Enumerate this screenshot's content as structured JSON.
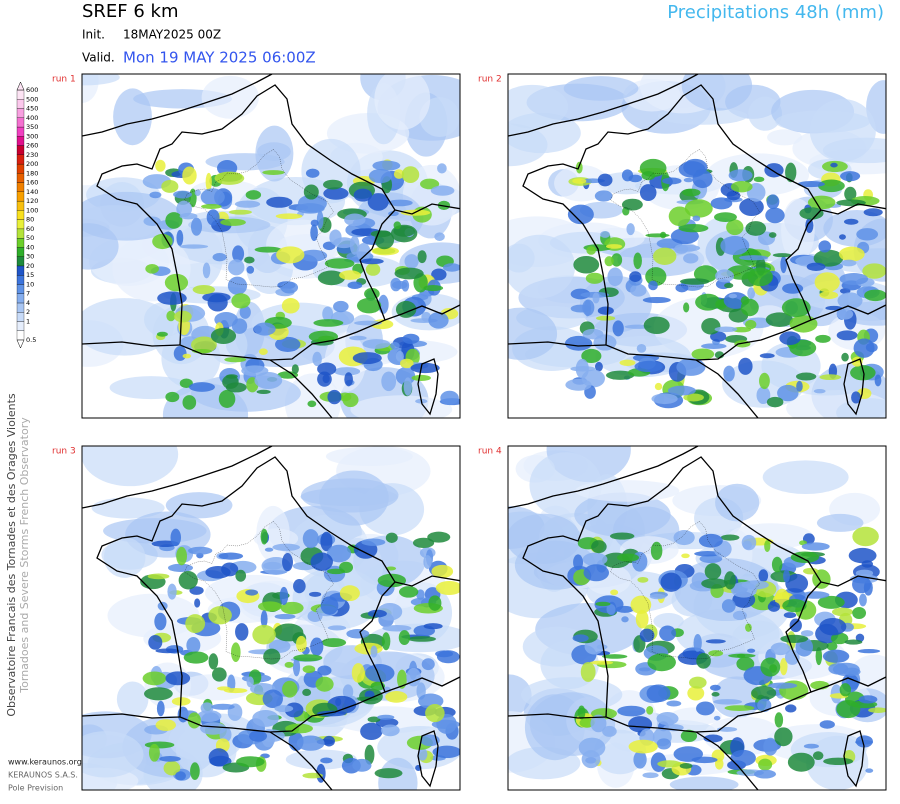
{
  "header": {
    "title": "SREF 6 km",
    "init_label": "Init.",
    "init": "18MAY2025 00Z",
    "valid_label": "Valid.",
    "valid": "Mon 19 MAY 2025 06:00Z",
    "product": "Precipitations 48h (mm)"
  },
  "panels": [
    {
      "label": "run 1"
    },
    {
      "label": "run 2"
    },
    {
      "label": "run 3"
    },
    {
      "label": "run 4"
    }
  ],
  "legend": {
    "levels": [
      0.5,
      1,
      2,
      4,
      7,
      10,
      15,
      20,
      30,
      40,
      50,
      60,
      80,
      100,
      120,
      140,
      160,
      180,
      200,
      230,
      260,
      300,
      350,
      400,
      450,
      500,
      600
    ],
    "colors": [
      "#ffffff",
      "#e6eefc",
      "#c8dbf8",
      "#a9c6f3",
      "#86aeee",
      "#5f92e6",
      "#3c74dc",
      "#1f55c8",
      "#1e8a3c",
      "#2fae2a",
      "#6ccf2a",
      "#b4e33a",
      "#e8f03a",
      "#f8e020",
      "#f8c010",
      "#f8a000",
      "#f08000",
      "#e86000",
      "#e04000",
      "#d82010",
      "#c80030",
      "#e0108c",
      "#f040c0",
      "#f470d0",
      "#f8a0e0",
      "#fbc8ec",
      "#fde4f4"
    ]
  },
  "footer": {
    "organization": "Observatoire Francais des Tornades et des Orages Violents",
    "organization_en": "Tornadoes and Severe Storms French Observatory",
    "website": "www.keraunos.org",
    "company": "KERAUNOS S.A.S.",
    "department": "Pole Prevision"
  }
}
